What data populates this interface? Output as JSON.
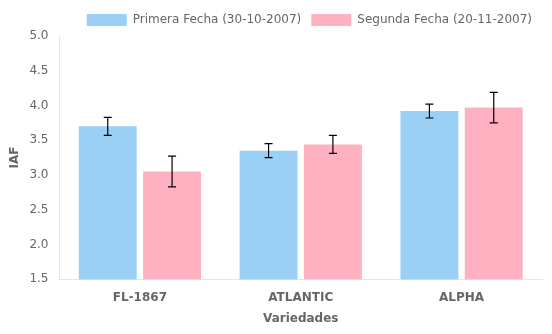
{
  "chart_data": {
    "type": "bar",
    "categories": [
      "FL-1867",
      "ATLANTIC",
      "ALPHA"
    ],
    "xlabel": "Variedades",
    "ylabel": "IAF",
    "series": [
      {
        "name": "Primera Fecha (30-10-2007)",
        "values": [
          3.7,
          3.35,
          3.92
        ],
        "errors": [
          0.13,
          0.1,
          0.1
        ]
      },
      {
        "name": "Segunda Fecha (20-11-2007)",
        "values": [
          3.05,
          3.44,
          3.97
        ],
        "errors": [
          0.22,
          0.13,
          0.22
        ]
      }
    ],
    "ylim": [
      1.5,
      5.0
    ],
    "yticks": [
      1.5,
      {
        "value": 2.0,
        "label": "2.0"
      },
      2.5,
      {
        "value": 3.0,
        "label": "3.0"
      },
      3.5,
      {
        "value": 4.0,
        "label": "4.0"
      },
      4.5,
      {
        "value": 5.0,
        "label": "5.0"
      }
    ],
    "grid": false,
    "legend": "upper right"
  }
}
